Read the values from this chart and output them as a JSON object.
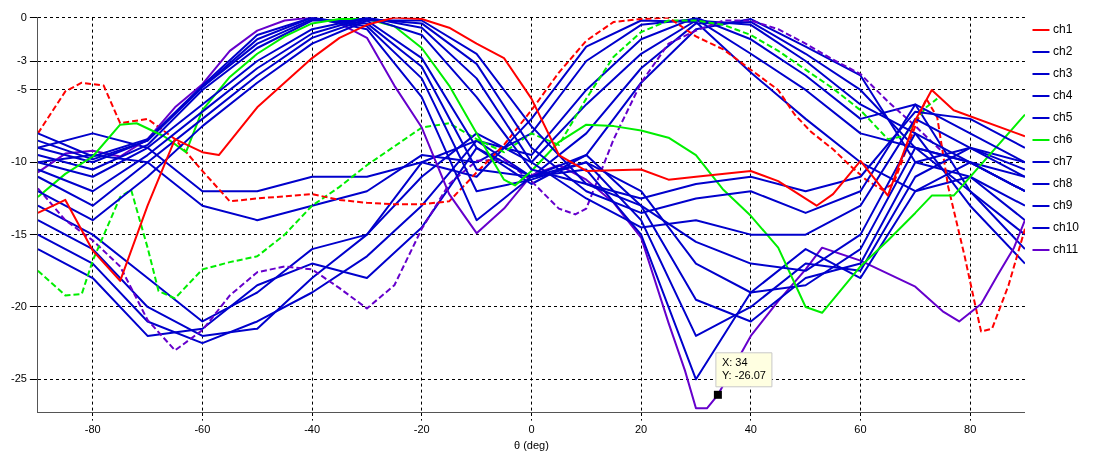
{
  "chart_data": {
    "type": "line",
    "xlabel": "θ (deg)",
    "xlim": [
      -90,
      90
    ],
    "xticks": [
      -80,
      -60,
      -40,
      -20,
      0,
      20,
      40,
      60,
      80
    ],
    "ylim": [
      -27.3,
      0
    ],
    "yticks": [
      0,
      -3,
      -5,
      -10,
      -15,
      -20,
      -25
    ],
    "grid": true,
    "legend": "top right",
    "marker": "none",
    "line_style": "solid",
    "x": [
      -90,
      -80,
      -70,
      -60,
      -50,
      -40,
      -30,
      -20,
      -10,
      0,
      10,
      20,
      30,
      40,
      50,
      60,
      70,
      80,
      90
    ],
    "annotations": [
      {
        "text": "X: 34\nY: -26.07",
        "x": 34,
        "y": -26.07
      }
    ],
    "series": [
      {
        "name": "ch1",
        "color": "#ff0000",
        "x": [
          -90,
          -85,
          -80,
          -75,
          -70,
          -65,
          -60,
          -57,
          -50,
          -40,
          -35,
          -30,
          -25,
          -20,
          -15,
          -10,
          -5,
          0,
          5,
          10,
          20,
          25,
          30,
          40,
          45,
          52,
          55,
          60,
          65,
          70,
          73,
          77,
          90
        ],
        "values": [
          -13.5,
          -12.6,
          -16.1,
          -18.2,
          -13,
          -8.4,
          -9.3,
          -9.5,
          -6.2,
          -2.8,
          -1.4,
          -0.5,
          0,
          -0.1,
          -0.7,
          -1.8,
          -2.8,
          -5.6,
          -9.5,
          -10.6,
          -10.5,
          -11.2,
          -11,
          -10.6,
          -11.3,
          -13,
          -12.2,
          -9.9,
          -12.3,
          -7.1,
          -5,
          -6.4,
          -8.2
        ]
      },
      {
        "name": "ch2",
        "color": "#0000cc",
        "values": [
          -12,
          -14,
          -11,
          -7.5,
          -4.5,
          -1.8,
          -0.2,
          -0.2,
          -2.5,
          -7.5,
          -11.5,
          -12.5,
          -11.5,
          -11,
          -12,
          -11,
          -6.5,
          -7,
          -9
        ]
      },
      {
        "name": "ch3",
        "color": "#0000cc",
        "values": [
          -11,
          -13,
          -10,
          -7,
          -4,
          -1.4,
          -0.1,
          -0.4,
          -3.2,
          -9,
          -12,
          -13.5,
          -12.5,
          -12,
          -13.5,
          -12,
          -6,
          -8,
          -10
        ]
      },
      {
        "name": "ch4",
        "color": "#0000cc",
        "values": [
          -10.5,
          -12,
          -9.5,
          -6.5,
          -3.5,
          -1.1,
          0,
          -0.7,
          -4.2,
          -10,
          -12.5,
          -14.5,
          -14,
          -15,
          -15,
          -13,
          -7,
          -9,
          -11
        ]
      },
      {
        "name": "ch5",
        "color": "#0000cc",
        "values": [
          -10,
          -11,
          -9,
          -6,
          -3,
          -0.8,
          0,
          -1.2,
          -5.5,
          -10.5,
          -11.5,
          -13,
          -15.5,
          -17,
          -17.5,
          -15,
          -8,
          -10,
          -12
        ]
      },
      {
        "name": "ch6",
        "color": "#00ee00",
        "x": [
          -90,
          -85,
          -80,
          -75,
          -72,
          -67,
          -63,
          -60,
          -55,
          -50,
          -45,
          -40,
          -35,
          -30,
          -25,
          -20,
          -15,
          -10,
          -5,
          -3,
          0,
          5,
          10,
          15,
          20,
          25,
          30,
          35,
          40,
          45,
          50,
          53,
          60,
          65,
          70,
          73,
          77,
          90
        ],
        "values": [
          -12.4,
          -10.8,
          -9.6,
          -7.4,
          -7.3,
          -8.2,
          -9.3,
          -6.4,
          -4.1,
          -2.5,
          -1.3,
          -0.4,
          -0.1,
          -0.1,
          -0.6,
          -2.1,
          -4.7,
          -8,
          -11.2,
          -11.6,
          -10.6,
          -8.6,
          -7.4,
          -7.5,
          -7.8,
          -8.3,
          -9.5,
          -11.9,
          -13.7,
          -15.9,
          -20,
          -20.4,
          -17.2,
          -15.4,
          -13.5,
          -12.3,
          -12.3,
          -6.7
        ]
      },
      {
        "name": "ch7",
        "color": "#0000cc",
        "values": [
          -9.5,
          -10.5,
          -8.8,
          -5,
          -2.1,
          -0.2,
          -0.2,
          -2.8,
          -9,
          -11,
          -10,
          -12,
          -17,
          -19,
          -18.5,
          -16,
          -9,
          -10,
          -11
        ]
      },
      {
        "name": "ch8",
        "color": "#0000cc",
        "values": [
          -9,
          -10,
          -8.5,
          -4.8,
          -1.8,
          -0.1,
          -0.4,
          -3.4,
          -10.5,
          -11,
          -9.5,
          -13,
          -19.5,
          -21,
          -18,
          -17,
          -10,
          -9,
          -10.5
        ]
      },
      {
        "name": "ch9",
        "color": "#0000cc",
        "values": [
          -8.5,
          -9.8,
          -8.5,
          -4.8,
          -1.5,
          0,
          -0.6,
          -4.2,
          -12,
          -11.2,
          -10,
          -14,
          -22,
          -20,
          -17,
          -17.5,
          -11,
          -9,
          -10
        ]
      },
      {
        "name": "ch10",
        "color": "#0000cc",
        "values": [
          -8,
          -9.6,
          -8.4,
          -4.7,
          -1.2,
          0,
          -0.8,
          -5.5,
          -14,
          -11,
          -10.5,
          -15,
          -25,
          -19,
          -16,
          -18,
          -12,
          -10,
          -12
        ]
      },
      {
        "name": "ch11",
        "color": "#6600cc",
        "x": [
          -90,
          -85,
          -80,
          -75,
          -70,
          -65,
          -60,
          -55,
          -50,
          -45,
          -40,
          -35,
          -30,
          -25,
          -20,
          -15,
          -10,
          -5,
          0,
          5,
          10,
          15,
          20,
          25,
          28,
          30,
          32,
          34,
          40,
          45,
          50,
          53,
          60,
          70,
          75,
          78,
          82,
          85,
          88,
          90
        ],
        "values": [
          -10.7,
          -9.4,
          -9.2,
          -9.6,
          -8.4,
          -6.2,
          -4.6,
          -2.3,
          -0.9,
          -0.2,
          0,
          -0.4,
          -1.4,
          -4.7,
          -7.6,
          -12.2,
          -14.9,
          -13.2,
          -10.9,
          -10.2,
          -11.2,
          -12.8,
          -15.2,
          -21.1,
          -24.4,
          -27,
          -27,
          -26.07,
          -22,
          -19.6,
          -17.4,
          -15.9,
          -16.8,
          -18.6,
          -20.3,
          -21,
          -19.8,
          -17.8,
          -15.9,
          -14
        ]
      },
      {
        "color": "#ff0000",
        "line_style": "dashed",
        "x": [
          -90,
          -85,
          -82,
          -78,
          -75,
          -70,
          -65,
          -60,
          -55,
          -50,
          -40,
          -35,
          -30,
          -25,
          -20,
          -15,
          -10,
          -5,
          0,
          5,
          10,
          15,
          20,
          25,
          30,
          35,
          40,
          45,
          48,
          51,
          55,
          58,
          61,
          64,
          66,
          70,
          72,
          74,
          76,
          79,
          81,
          82,
          84,
          87,
          90
        ],
        "values": [
          -8,
          -5.1,
          -4.5,
          -4.7,
          -7.3,
          -7,
          -8.4,
          -10.6,
          -12.7,
          -12.5,
          -12.2,
          -12.6,
          -12.8,
          -12.9,
          -12.9,
          -12.7,
          -10.7,
          -8.8,
          -6.4,
          -3.8,
          -1.6,
          -0.3,
          -0.1,
          0,
          -1.3,
          -2.2,
          -3.6,
          -5,
          -6.7,
          -7.9,
          -9.1,
          -10.2,
          -11.2,
          -11.9,
          -11.5,
          -7.5,
          -5.6,
          -6.9,
          -11.7,
          -16.5,
          -20,
          -21.7,
          -21.5,
          -18.5,
          -14.6
        ]
      },
      {
        "color": "#00ee00",
        "line_style": "dashed",
        "x": [
          -90,
          -85,
          -82,
          -80,
          -75,
          -73,
          -70,
          -68,
          -65,
          -60,
          -55,
          -50,
          -45,
          -40,
          -35,
          -30,
          -25,
          -20,
          -15,
          -10,
          -5,
          0,
          5,
          10,
          15,
          20,
          25,
          30,
          35,
          40,
          45,
          50,
          55,
          60,
          65,
          68,
          72,
          74
        ],
        "values": [
          -17.5,
          -19.2,
          -19.1,
          -16.8,
          -12.4,
          -11.9,
          -15.9,
          -18.9,
          -19.4,
          -17.4,
          -16.9,
          -16.5,
          -15,
          -13,
          -11.7,
          -10.2,
          -8.9,
          -7.6,
          -7.3,
          -8.4,
          -9.3,
          -8,
          -8.8,
          -5.6,
          -2.7,
          -1,
          -0.2,
          -0.2,
          -0.5,
          -1.2,
          -2.3,
          -3.6,
          -4.9,
          -6.4,
          -8.4,
          -8.2,
          -6.2,
          -5.6
        ]
      },
      {
        "color": "#6600cc",
        "line_style": "dashed",
        "x": [
          -90,
          -85,
          -80,
          -75,
          -70,
          -65,
          -60,
          -55,
          -50,
          -45,
          -40,
          -35,
          -30,
          -25,
          -20,
          -15,
          -10,
          -5,
          0,
          5,
          8,
          10,
          15,
          20,
          25,
          30,
          35,
          40,
          45,
          50,
          55,
          60,
          65,
          70,
          75
        ],
        "values": [
          -11.8,
          -14,
          -15.4,
          -17.2,
          -20.9,
          -23,
          -21.6,
          -19.2,
          -17.6,
          -17.2,
          -17.4,
          -18.7,
          -20.1,
          -18.5,
          -14.6,
          -11.5,
          -9.9,
          -9.8,
          -11.3,
          -13.2,
          -13.6,
          -13.2,
          -8.4,
          -4.5,
          -1.8,
          -0.9,
          -0.2,
          -0.2,
          -0.8,
          -1.8,
          -2.9,
          -3.9,
          -5.8,
          -7.5,
          -9.3
        ]
      },
      {
        "color": "#0000cc",
        "values": [
          -9,
          -8,
          -9,
          -12,
          -12,
          -11,
          -11,
          -10,
          -11,
          -7,
          -2,
          -0.2,
          -0.3,
          -3.8,
          -7,
          -10,
          -12,
          -11,
          -13
        ]
      },
      {
        "color": "#0000cc",
        "values": [
          -10,
          -9.5,
          -10,
          -13,
          -14,
          -13,
          -12,
          -9.5,
          -10,
          -8,
          -3,
          -0.5,
          -0.1,
          -2.5,
          -5,
          -8,
          -9,
          -10,
          -12
        ]
      },
      {
        "color": "#0000cc",
        "values": [
          -13,
          -15,
          -18,
          -21,
          -19,
          -16,
          -15,
          -10,
          -8.5,
          -9.5,
          -5,
          -1.5,
          0,
          -1.5,
          -4,
          -7,
          -6,
          -12,
          -16
        ]
      },
      {
        "color": "#0000cc",
        "values": [
          -14,
          -16,
          -20,
          -22,
          -21.5,
          -18,
          -15,
          -11,
          -8,
          -10,
          -6,
          -2.5,
          -0.2,
          -0.5,
          -3,
          -6,
          -8,
          -13,
          -17
        ]
      },
      {
        "color": "#0000cc",
        "values": [
          -15,
          -17,
          -21,
          -22.5,
          -21,
          -19,
          -16.5,
          -13,
          -8.5,
          -11,
          -8,
          -3.5,
          -0.4,
          -0.3,
          -2.5,
          -5,
          -9,
          -12,
          -15
        ]
      },
      {
        "color": "#0000cc",
        "values": [
          -16,
          -18,
          -22,
          -21.5,
          -18.5,
          -17,
          -18,
          -14.5,
          -9,
          -11.5,
          -9.5,
          -4.5,
          -0.8,
          -0.1,
          -2,
          -4,
          -10,
          -11,
          -14
        ]
      }
    ]
  }
}
